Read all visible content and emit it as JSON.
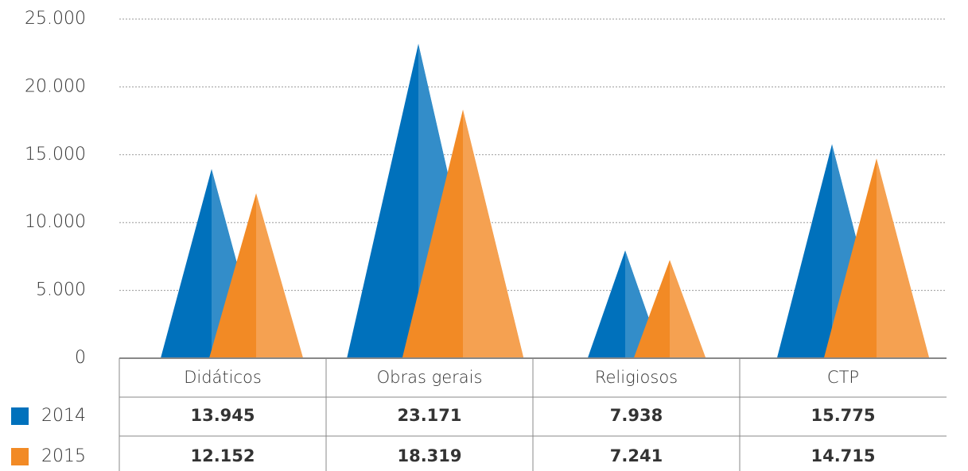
{
  "chart_data": {
    "type": "triangle_bar",
    "categories": [
      "Didáticos",
      "Obras gerais",
      "Religiosos",
      "CTP"
    ],
    "series": [
      {
        "name": "2014",
        "color": "#0071bc",
        "values": [
          13945,
          23171,
          7938,
          15775
        ],
        "value_labels": [
          "13.945",
          "23.171",
          "7.938",
          "15.775"
        ]
      },
      {
        "name": "2015",
        "color": "#f28a25",
        "values": [
          12152,
          18319,
          7241,
          14715
        ],
        "value_labels": [
          "12.152",
          "18.319",
          "7.241",
          "14.715"
        ]
      }
    ],
    "ylim": [
      0,
      25000
    ],
    "yticks": [
      0,
      {
        "value": 5000,
        "label": "5.000"
      },
      {
        "value": 10000,
        "label": "10.000"
      },
      {
        "value": 15000,
        "label": "15.000"
      },
      {
        "value": 20000,
        "label": "20.000"
      },
      {
        "value": 25000,
        "label": "25.000"
      }
    ],
    "grid": true
  }
}
